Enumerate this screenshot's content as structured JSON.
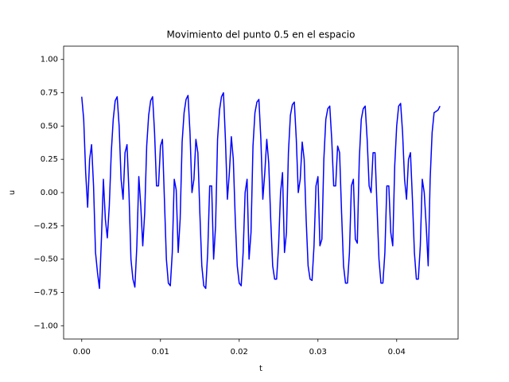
{
  "chart_data": {
    "type": "line",
    "title": "Movimiento del punto 0.5 en el espacio",
    "x_label": "t",
    "y_label": "u",
    "xlim": [
      -0.0023,
      0.0478
    ],
    "ylim": [
      -1.1,
      1.1
    ],
    "xticks": [
      {
        "value": 0,
        "label": "0.00"
      },
      {
        "value": 0.01,
        "label": "0.01"
      },
      {
        "value": 0.02,
        "label": "0.02"
      },
      {
        "value": 0.03,
        "label": "0.03"
      },
      {
        "value": 0.04,
        "label": "0.04"
      }
    ],
    "yticks": [
      {
        "value": -1,
        "label": "−1.00"
      },
      {
        "value": -0.75,
        "label": "−0.75"
      },
      {
        "value": -0.5,
        "label": "−0.50"
      },
      {
        "value": -0.25,
        "label": "−0.25"
      },
      {
        "value": 0,
        "label": "0.00"
      },
      {
        "value": 0.25,
        "label": "0.25"
      },
      {
        "value": 0.5,
        "label": "0.50"
      },
      {
        "value": 0.75,
        "label": "0.75"
      },
      {
        "value": 1,
        "label": "1.00"
      }
    ],
    "grid": false,
    "x": [
      0,
      0.00025,
      0.0005,
      0.00075,
      0.001,
      0.00125,
      0.0015,
      0.00175,
      0.002,
      0.00225,
      0.0025,
      0.00275,
      0.003,
      0.00325,
      0.0035,
      0.00375,
      0.004,
      0.00425,
      0.0045,
      0.00475,
      0.005,
      0.00525,
      0.0055,
      0.00575,
      0.006,
      0.00625,
      0.0065,
      0.00675,
      0.007,
      0.00725,
      0.0075,
      0.00775,
      0.008,
      0.00825,
      0.0085,
      0.00875,
      0.009,
      0.00925,
      0.0095,
      0.00975,
      0.01,
      0.01025,
      0.0105,
      0.01075,
      0.011,
      0.01125,
      0.0115,
      0.01175,
      0.012,
      0.01225,
      0.0125,
      0.01275,
      0.013,
      0.01325,
      0.0135,
      0.01375,
      0.014,
      0.01425,
      0.0145,
      0.01475,
      0.015,
      0.01525,
      0.0155,
      0.01575,
      0.016,
      0.01625,
      0.0165,
      0.01675,
      0.017,
      0.01725,
      0.0175,
      0.01775,
      0.018,
      0.01825,
      0.0185,
      0.01875,
      0.019,
      0.01925,
      0.0195,
      0.01975,
      0.02,
      0.02025,
      0.0205,
      0.02075,
      0.021,
      0.02125,
      0.0215,
      0.02175,
      0.022,
      0.02225,
      0.0225,
      0.02275,
      0.023,
      0.02325,
      0.0235,
      0.02375,
      0.024,
      0.02425,
      0.0245,
      0.02475,
      0.025,
      0.02525,
      0.0255,
      0.02575,
      0.026,
      0.02625,
      0.0265,
      0.02675,
      0.027,
      0.02725,
      0.0275,
      0.02775,
      0.028,
      0.02825,
      0.0285,
      0.02875,
      0.029,
      0.02925,
      0.0295,
      0.02975,
      0.03,
      0.03025,
      0.0305,
      0.03075,
      0.031,
      0.03125,
      0.0315,
      0.03175,
      0.032,
      0.03225,
      0.0325,
      0.03275,
      0.033,
      0.03325,
      0.0335,
      0.03375,
      0.034,
      0.03425,
      0.0345,
      0.03475,
      0.035,
      0.03525,
      0.0355,
      0.03575,
      0.036,
      0.03625,
      0.0365,
      0.03675,
      0.037,
      0.03725,
      0.0375,
      0.03775,
      0.038,
      0.03825,
      0.0385,
      0.03875,
      0.039,
      0.03925,
      0.0395,
      0.03975,
      0.04,
      0.04025,
      0.0405,
      0.04075,
      0.041,
      0.04125,
      0.0415,
      0.04175,
      0.042,
      0.04225,
      0.0425,
      0.04275,
      0.043,
      0.04325,
      0.0435,
      0.04375,
      0.044,
      0.04425,
      0.0445,
      0.04475,
      0.045,
      0.04525,
      0.0455
    ],
    "series": [
      {
        "name": "u",
        "color": "#0000ff",
        "values": [
          0.72,
          0.55,
          0.15,
          -0.11,
          0.25,
          0.36,
          0.05,
          -0.45,
          -0.6,
          -0.72,
          -0.35,
          0.1,
          -0.2,
          -0.34,
          -0.1,
          0.3,
          0.55,
          0.69,
          0.72,
          0.5,
          0.1,
          -0.05,
          0.3,
          0.36,
          0.0,
          -0.5,
          -0.65,
          -0.71,
          -0.4,
          0.12,
          -0.1,
          -0.4,
          -0.15,
          0.35,
          0.58,
          0.69,
          0.72,
          0.45,
          0.05,
          0.05,
          0.35,
          0.4,
          -0.05,
          -0.5,
          -0.68,
          -0.7,
          -0.45,
          0.1,
          0.02,
          -0.45,
          -0.2,
          0.38,
          0.6,
          0.7,
          0.73,
          0.45,
          0.0,
          0.1,
          0.4,
          0.3,
          -0.15,
          -0.55,
          -0.7,
          -0.72,
          -0.45,
          0.05,
          0.05,
          -0.5,
          -0.25,
          0.4,
          0.62,
          0.72,
          0.75,
          0.4,
          -0.05,
          0.15,
          0.42,
          0.25,
          -0.2,
          -0.55,
          -0.68,
          -0.7,
          -0.45,
          0.0,
          0.1,
          -0.5,
          -0.3,
          0.35,
          0.6,
          0.68,
          0.7,
          0.4,
          -0.05,
          0.15,
          0.4,
          0.22,
          -0.2,
          -0.55,
          -0.65,
          -0.65,
          -0.4,
          0.0,
          0.15,
          -0.45,
          -0.3,
          0.3,
          0.58,
          0.66,
          0.68,
          0.4,
          0.0,
          0.1,
          0.38,
          0.25,
          -0.2,
          -0.55,
          -0.65,
          -0.66,
          -0.4,
          0.05,
          0.12,
          -0.4,
          -0.35,
          0.25,
          0.55,
          0.63,
          0.65,
          0.4,
          0.05,
          0.05,
          0.35,
          0.3,
          -0.15,
          -0.55,
          -0.68,
          -0.68,
          -0.45,
          0.05,
          0.1,
          -0.35,
          -0.38,
          0.25,
          0.55,
          0.63,
          0.65,
          0.4,
          0.05,
          0.0,
          0.3,
          0.3,
          -0.1,
          -0.5,
          -0.68,
          -0.68,
          -0.45,
          0.05,
          0.05,
          -0.3,
          -0.4,
          0.2,
          0.5,
          0.65,
          0.67,
          0.45,
          0.1,
          -0.05,
          0.25,
          0.3,
          -0.05,
          -0.45,
          -0.65,
          -0.65,
          -0.4,
          0.1,
          0.0,
          -0.25,
          -0.55,
          0.1,
          0.45,
          0.6,
          0.61,
          0.62,
          0.65
        ]
      }
    ]
  }
}
